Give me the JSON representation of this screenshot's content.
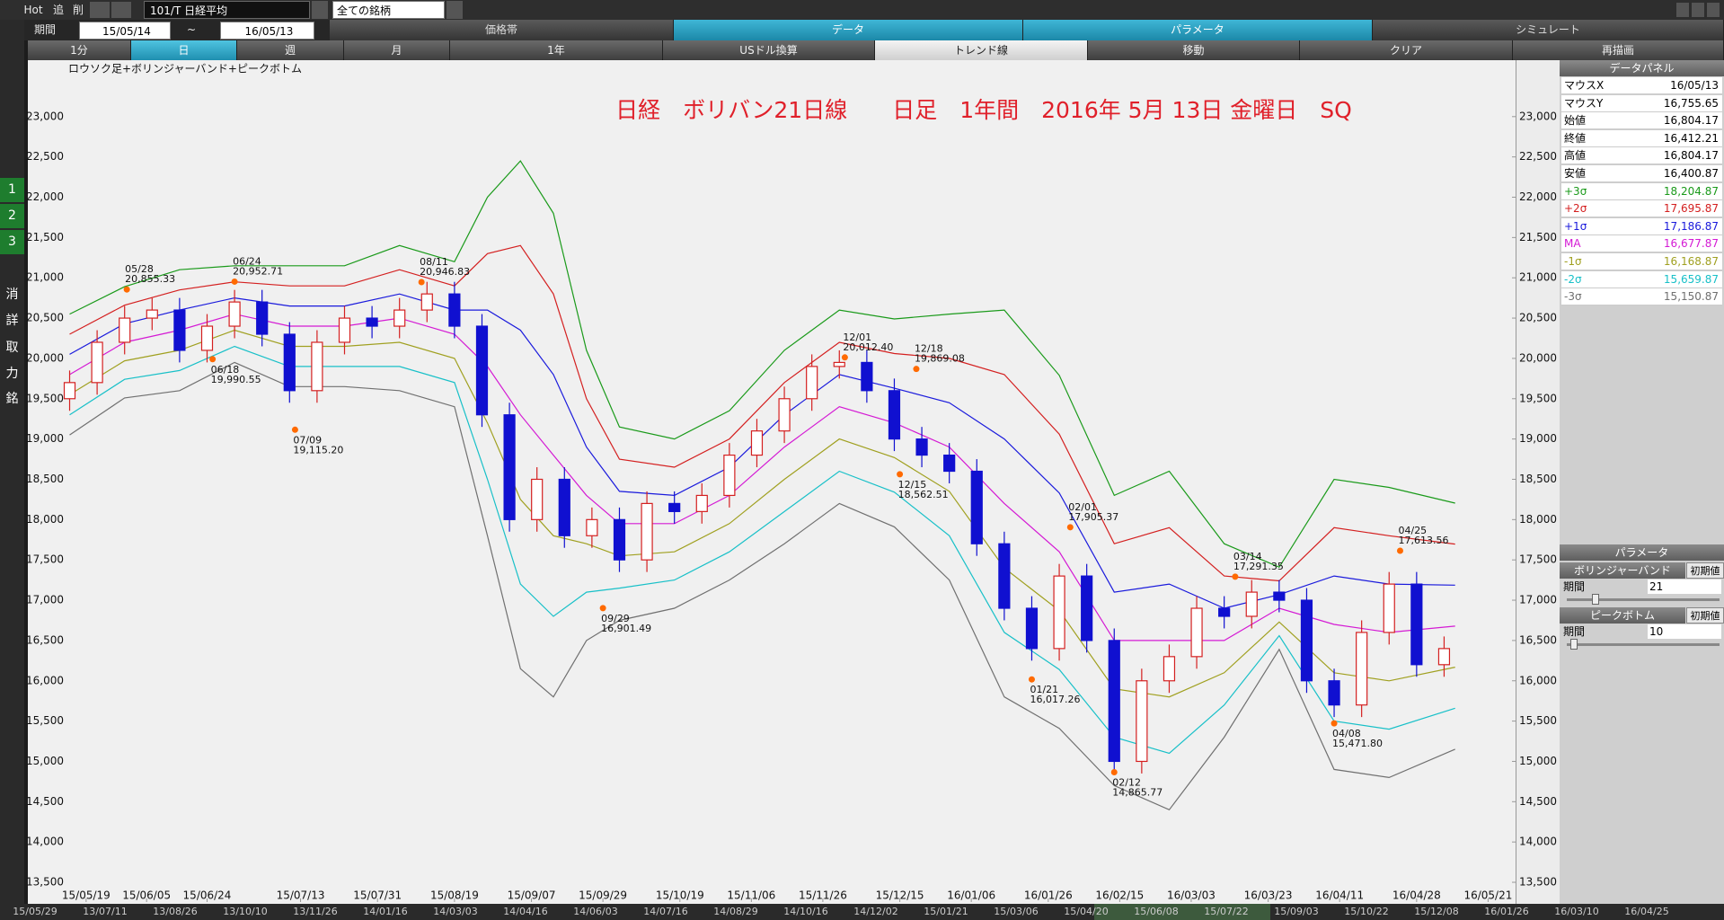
{
  "toolbar": {
    "hot": "Hot",
    "add": "追",
    "del": "削",
    "symbol": "101/T 日経平均",
    "universe": "全ての銘柄",
    "period_label": "期間",
    "from": "15/05/14",
    "sep": "~",
    "to": "16/05/13",
    "tabs": [
      "価格帯",
      "データ",
      "パラメータ",
      "シミュレート"
    ],
    "buttons": [
      "1分",
      "日",
      "週",
      "月",
      "1年",
      "USドル換算",
      "トレンド線",
      "移動",
      "クリア",
      "再描画"
    ]
  },
  "side_icons": [
    "1",
    "2",
    "3",
    "消",
    "詳",
    "取",
    "力",
    "銘"
  ],
  "chart_data": {
    "type": "candlestick",
    "title": "日経　ボリバン21日線　　日足　1年間　2016年 5月 13日 金曜日　SQ",
    "subtitle": "ロウソク足+ボリンジャーバンド+ピークボトム",
    "xlim": [
      -7.6,
      263
    ],
    "ylim": [
      13255,
      23700
    ],
    "grid": false,
    "xticks": [
      {
        "value": 3,
        "label": "15/05/19"
      },
      {
        "value": 14,
        "label": "15/06/05"
      },
      {
        "value": 25,
        "label": "15/06/24"
      },
      {
        "value": 42,
        "label": "15/07/13"
      },
      {
        "value": 56,
        "label": "15/07/31"
      },
      {
        "value": 70,
        "label": "15/08/19"
      },
      {
        "value": 84,
        "label": "15/09/07"
      },
      {
        "value": 97,
        "label": "15/09/29"
      },
      {
        "value": 111,
        "label": "15/10/19"
      },
      {
        "value": 124,
        "label": "15/11/06"
      },
      {
        "value": 137,
        "label": "15/11/26"
      },
      {
        "value": 151,
        "label": "15/12/15"
      },
      {
        "value": 164,
        "label": "16/01/06"
      },
      {
        "value": 178,
        "label": "16/01/26"
      },
      {
        "value": 191,
        "label": "16/02/15"
      },
      {
        "value": 204,
        "label": "16/03/03"
      },
      {
        "value": 218,
        "label": "16/03/23"
      },
      {
        "value": 231,
        "label": "16/04/11"
      },
      {
        "value": 245,
        "label": "16/04/28"
      },
      {
        "value": 258,
        "label": "16/05/21"
      }
    ],
    "yticks": [
      {
        "value": 13500,
        "label": "13,500"
      },
      {
        "value": 14000,
        "label": "14,000"
      },
      {
        "value": 14500,
        "label": "14,500"
      },
      {
        "value": 15000,
        "label": "15,000"
      },
      {
        "value": 15500,
        "label": "15,500"
      },
      {
        "value": 16000,
        "label": "16,000"
      },
      {
        "value": 16500,
        "label": "16,500"
      },
      {
        "value": 17000,
        "label": "17,000"
      },
      {
        "value": 17500,
        "label": "17,500"
      },
      {
        "value": 18000,
        "label": "18,000"
      },
      {
        "value": 18500,
        "label": "18,500"
      },
      {
        "value": 19000,
        "label": "19,000"
      },
      {
        "value": 19500,
        "label": "19,500"
      },
      {
        "value": 20000,
        "label": "20,000"
      },
      {
        "value": 20500,
        "label": "20,500"
      },
      {
        "value": 21000,
        "label": "21,000"
      },
      {
        "value": 21500,
        "label": "21,500"
      },
      {
        "value": 22000,
        "label": "22,000"
      },
      {
        "value": 22500,
        "label": "22,500"
      },
      {
        "value": 23000,
        "label": "23,000"
      }
    ],
    "candles": {
      "up_color": "#d42020",
      "down_color": "#1010d0",
      "x": [
        0,
        5,
        10,
        15,
        20,
        25,
        30,
        35,
        40,
        45,
        50,
        55,
        60,
        65,
        70,
        75,
        80,
        85,
        90,
        95,
        100,
        105,
        110,
        115,
        120,
        125,
        130,
        135,
        140,
        145,
        150,
        155,
        160,
        165,
        170,
        175,
        180,
        185,
        190,
        195,
        200,
        205,
        210,
        215,
        220,
        225,
        230,
        235,
        240,
        245,
        250
      ],
      "open": [
        19500,
        19700,
        20200,
        20500,
        20600,
        20100,
        20400,
        20700,
        20300,
        19600,
        20200,
        20500,
        20400,
        20600,
        20800,
        20400,
        19300,
        18000,
        18500,
        17800,
        18000,
        17500,
        18200,
        18100,
        18300,
        18800,
        19100,
        19500,
        19900,
        19950,
        19600,
        19000,
        18800,
        18600,
        17700,
        16900,
        16400,
        17300,
        16500,
        15000,
        16000,
        16300,
        16900,
        16800,
        17100,
        17000,
        16000,
        15700,
        16600,
        17200,
        16200
      ],
      "high": [
        19850,
        20350,
        20650,
        20750,
        20750,
        20550,
        20850,
        20850,
        20450,
        20350,
        20650,
        20650,
        20750,
        20950,
        20950,
        20550,
        19450,
        18650,
        18650,
        18150,
        18150,
        18350,
        18350,
        18450,
        18950,
        19250,
        19650,
        20050,
        20100,
        20100,
        19750,
        19150,
        18950,
        18750,
        17850,
        17050,
        17450,
        17450,
        16650,
        16150,
        16450,
        17050,
        17050,
        17250,
        17250,
        17150,
        16150,
        16750,
        17350,
        17350,
        16550
      ],
      "low": [
        19350,
        19550,
        20050,
        20350,
        19950,
        19950,
        20250,
        20150,
        19450,
        19450,
        20050,
        20250,
        20250,
        20450,
        20250,
        19150,
        17850,
        17850,
        17650,
        17650,
        17350,
        17350,
        17950,
        17950,
        18150,
        18650,
        18950,
        19350,
        19750,
        19450,
        18850,
        18650,
        18450,
        17550,
        16750,
        16250,
        16250,
        16350,
        14850,
        14850,
        15850,
        16150,
        16650,
        16650,
        16850,
        15850,
        15550,
        15550,
        16450,
        16050,
        16050
      ],
      "close": [
        19700,
        20200,
        20500,
        20600,
        20100,
        20400,
        20700,
        20300,
        19600,
        20200,
        20500,
        20400,
        20600,
        20800,
        20400,
        19300,
        18000,
        18500,
        17800,
        18000,
        17500,
        18200,
        18100,
        18300,
        18800,
        19100,
        19500,
        19900,
        19950,
        19600,
        19000,
        18800,
        18600,
        17700,
        16900,
        16400,
        17300,
        16500,
        15000,
        16000,
        16300,
        16900,
        16800,
        17100,
        17000,
        16000,
        15700,
        16600,
        17200,
        16200,
        16400
      ]
    },
    "band_x": [
      0,
      10,
      20,
      30,
      40,
      50,
      60,
      70,
      76,
      82,
      88,
      94,
      100,
      110,
      120,
      130,
      140,
      150,
      160,
      170,
      180,
      190,
      200,
      210,
      220,
      230,
      240,
      252
    ],
    "series": [
      {
        "color": "#1a9a1a",
        "values": [
          20550,
          20890,
          21100,
          21150,
          21150,
          21150,
          21400,
          21200,
          22000,
          22450,
          21800,
          20100,
          19150,
          19000,
          19350,
          20100,
          20600,
          20490,
          20550,
          20600,
          19790,
          18300,
          18600,
          17700,
          17410,
          18500,
          18400,
          18204.87
        ]
      },
      {
        "color": "#d42020",
        "values": [
          20300,
          20660,
          20850,
          20950,
          20900,
          20900,
          21100,
          20900,
          21300,
          21400,
          20800,
          19500,
          18750,
          18650,
          19000,
          19700,
          20200,
          20060,
          20000,
          19800,
          19060,
          17700,
          17900,
          17300,
          17240,
          17900,
          17800,
          17695.87
        ]
      },
      {
        "color": "#1a1adc",
        "values": [
          20050,
          20430,
          20600,
          20750,
          20650,
          20650,
          20800,
          20600,
          20600,
          20350,
          19800,
          18900,
          18350,
          18300,
          18650,
          19300,
          19800,
          19630,
          19450,
          19000,
          18330,
          17100,
          17200,
          16900,
          17070,
          17300,
          17200,
          17186.87
        ]
      },
      {
        "color": "#d41ad4",
        "values": [
          19800,
          20200,
          20350,
          20550,
          20400,
          20400,
          20500,
          20300,
          19900,
          19300,
          18800,
          18300,
          17950,
          17950,
          18300,
          18900,
          19400,
          19200,
          18900,
          18200,
          17600,
          16500,
          16500,
          16500,
          16900,
          16700,
          16600,
          16677.87
        ]
      },
      {
        "color": "#a0a020",
        "values": [
          19550,
          19970,
          20100,
          20350,
          20150,
          20150,
          20200,
          20000,
          19200,
          18250,
          17800,
          17700,
          17550,
          17600,
          17950,
          18500,
          19000,
          18770,
          18350,
          17400,
          16870,
          15900,
          15800,
          16100,
          16730,
          16100,
          16000,
          16168.87
        ]
      },
      {
        "color": "#18c0c8",
        "values": [
          19300,
          19740,
          19850,
          20150,
          19900,
          19900,
          19900,
          19700,
          18500,
          17200,
          16800,
          17100,
          17150,
          17250,
          17600,
          18100,
          18600,
          18340,
          17800,
          16600,
          16140,
          15300,
          15100,
          15700,
          16560,
          15500,
          15400,
          15659.87
        ]
      },
      {
        "color": "#707070",
        "values": [
          19050,
          19510,
          19600,
          19950,
          19650,
          19650,
          19600,
          19400,
          17800,
          16150,
          15800,
          16500,
          16750,
          16900,
          17250,
          17700,
          18200,
          17910,
          17250,
          15800,
          15410,
          14700,
          14400,
          15300,
          16390,
          14900,
          14800,
          15150.87
        ]
      }
    ],
    "peaks": {
      "color": "#ff6a00",
      "x": [
        10.4,
        30,
        26,
        41,
        64,
        97,
        141,
        154,
        151,
        182,
        175,
        190,
        212,
        230,
        242
      ],
      "dates": [
        "05/28",
        "06/24",
        "06/18",
        "07/09",
        "08/11",
        "09/29",
        "12/01",
        "12/18",
        "12/15",
        "02/01",
        "01/21",
        "02/12",
        "03/14",
        "04/08",
        "04/25"
      ],
      "values": [
        20855.33,
        20952.71,
        19990.55,
        19115.2,
        20946.83,
        16901.49,
        20012.4,
        19869.08,
        18562.51,
        17905.37,
        16017.26,
        14865.77,
        17291.35,
        15471.8,
        17613.56
      ],
      "value_labels": [
        "20,855.33",
        "20,952.71",
        "19,990.55",
        "19,115.20",
        "20,946.83",
        "16,901.49",
        "20,012.40",
        "19,869.08",
        "18,562.51",
        "17,905.37",
        "16,017.26",
        "14,865.77",
        "17,291.35",
        "15,471.80",
        "17,613.56"
      ],
      "position": [
        "above",
        "above",
        "below",
        "below",
        "above",
        "below",
        "above",
        "above",
        "below",
        "above",
        "below",
        "below",
        "above",
        "below",
        "above"
      ]
    }
  },
  "data_panel": {
    "title": "データパネル",
    "rows": [
      {
        "label": "マウスX",
        "value": "16/05/13"
      },
      {
        "label": "マウスY",
        "value": "16,755.65"
      },
      {
        "label": "始値",
        "value": "16,804.17"
      },
      {
        "label": "終値",
        "value": "16,412.21"
      },
      {
        "label": "高値",
        "value": "16,804.17"
      },
      {
        "label": "安値",
        "value": "16,400.87"
      },
      {
        "label": "+3σ",
        "value": "18,204.87",
        "color": "#1a9a1a"
      },
      {
        "label": "+2σ",
        "value": "17,695.87",
        "color": "#d42020"
      },
      {
        "label": "+1σ",
        "value": "17,186.87",
        "color": "#1a1adc"
      },
      {
        "label": "MA",
        "value": "16,677.87",
        "color": "#d41ad4"
      },
      {
        "label": "-1σ",
        "value": "16,168.87",
        "color": "#a0a020"
      },
      {
        "label": "-2σ",
        "value": "15,659.87",
        "color": "#18c0c8"
      },
      {
        "label": "-3σ",
        "value": "15,150.87",
        "color": "#707070"
      }
    ]
  },
  "param_panel": {
    "title": "パラメータ",
    "groups": [
      {
        "name": "ボリンジャーバンド",
        "reset": "初期値",
        "field": "期間",
        "value": "21"
      },
      {
        "name": "ピークボトム",
        "reset": "初期値",
        "field": "期間",
        "value": "10"
      }
    ]
  },
  "date_strip": [
    "15/05/29",
    "13/07/11",
    "13/08/26",
    "13/10/10",
    "13/11/26",
    "14/01/16",
    "14/03/03",
    "14/04/16",
    "14/06/03",
    "14/07/16",
    "14/08/29",
    "14/10/16",
    "14/12/02",
    "15/01/21",
    "15/03/06",
    "15/04/20",
    "15/06/08",
    "15/07/22",
    "15/09/03",
    "15/10/22",
    "15/12/08",
    "16/01/26",
    "16/03/10",
    "16/04/25"
  ]
}
